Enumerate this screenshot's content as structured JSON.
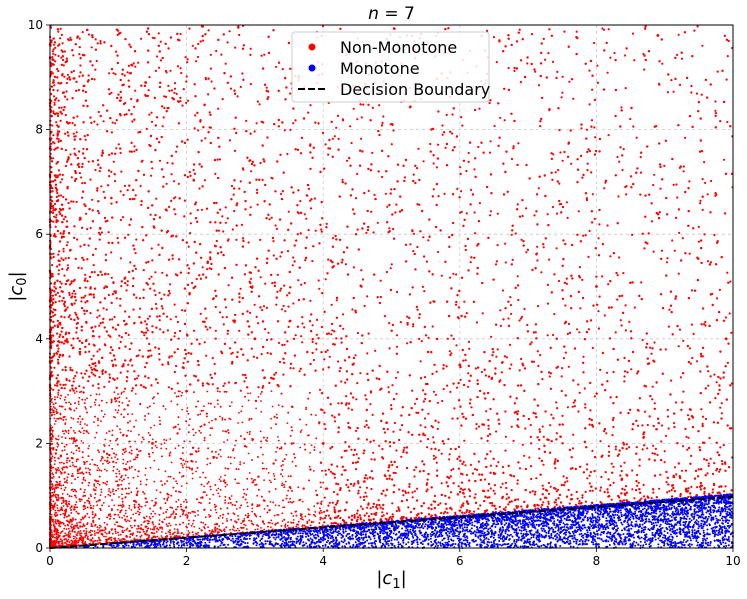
{
  "chart_data": {
    "type": "scatter",
    "title": "n = 7",
    "title_italic_var": "n",
    "title_rest": " = 7",
    "xlabel": "|c1|",
    "xlabel_parts": {
      "open": "|",
      "var": "c",
      "sub": "1",
      "close": "|"
    },
    "ylabel": "|c0|",
    "ylabel_parts": {
      "open": "|",
      "var": "c",
      "sub": "0",
      "close": "|"
    },
    "xlim": [
      0,
      10
    ],
    "ylim": [
      0,
      10
    ],
    "xticks": [
      0,
      2,
      4,
      6,
      8,
      10
    ],
    "yticks": [
      0,
      2,
      4,
      6,
      8,
      10
    ],
    "xtick_labels": [
      "0",
      "2",
      "4",
      "6",
      "8",
      "10"
    ],
    "ytick_labels": [
      "0",
      "2",
      "4",
      "6",
      "8",
      "10"
    ],
    "grid": true,
    "legend_position": "top-center",
    "series": [
      {
        "name": "Non-Monotone",
        "color": "#ff0000",
        "marker": "dot",
        "region": "above decision boundary, dense near origin, sparse toward upper right",
        "sample_points": [
          [
            0.1,
            0.3
          ],
          [
            0.5,
            0.8
          ],
          [
            1.0,
            1.2
          ],
          [
            1.5,
            2.0
          ],
          [
            2.0,
            3.0
          ],
          [
            3.0,
            4.0
          ],
          [
            4.0,
            2.0
          ],
          [
            6.0,
            3.5
          ],
          [
            8.0,
            5.0
          ],
          [
            8.9,
            9.8
          ],
          [
            0.05,
            8.9
          ],
          [
            1.4,
            8.9
          ],
          [
            9.9,
            4.0
          ]
        ]
      },
      {
        "name": "Monotone",
        "color": "#0000ff",
        "marker": "dot",
        "region": "below decision boundary, band along the c1 axis",
        "sample_points": [
          [
            1.0,
            0.05
          ],
          [
            2.0,
            0.1
          ],
          [
            4.0,
            0.2
          ],
          [
            6.0,
            0.3
          ],
          [
            8.0,
            0.5
          ],
          [
            9.5,
            0.8
          ],
          [
            9.9,
            0.9
          ]
        ]
      },
      {
        "name": "Decision Boundary",
        "color": "#000000",
        "line_style": "dashed",
        "x": [
          0,
          10
        ],
        "y": [
          0,
          0.98
        ]
      }
    ]
  }
}
